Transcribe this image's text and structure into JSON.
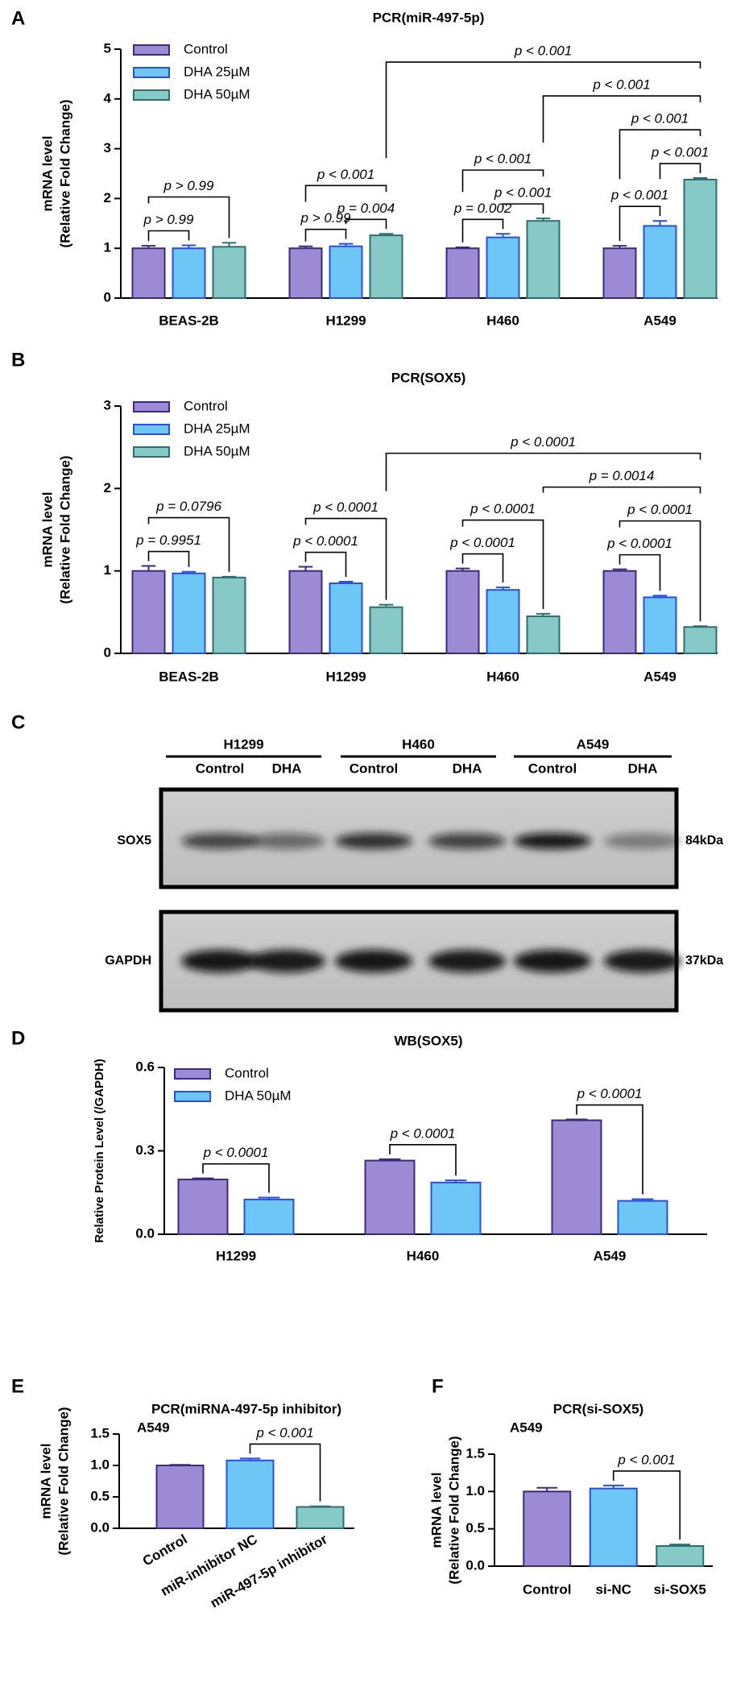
{
  "chart_data": [
    {
      "panel": "A",
      "type": "bar",
      "title": "PCR(miR-497-5p)",
      "ylabel": [
        "mRNA level",
        "(Relative Fold Change)"
      ],
      "categories": [
        "BEAS-2B",
        "H1299",
        "H460",
        "A549"
      ],
      "series": [
        {
          "name": "Control",
          "color": "#9c8ad4",
          "edgecolor": "#3b2b78",
          "values": [
            1.0,
            1.0,
            1.0,
            1.0
          ],
          "errors": [
            0.05,
            0.04,
            0.02,
            0.05
          ]
        },
        {
          "name": "DHA 25µM",
          "color": "#6ec6f7",
          "edgecolor": "#2a4fe0",
          "values": [
            1.0,
            1.04,
            1.22,
            1.45
          ],
          "errors": [
            0.06,
            0.05,
            0.07,
            0.1
          ]
        },
        {
          "name": "DHA 50µM",
          "color": "#86c9c7",
          "edgecolor": "#2e6e6e",
          "values": [
            1.03,
            1.26,
            1.55,
            2.38
          ],
          "errors": [
            0.08,
            0.03,
            0.05,
            0.03
          ]
        }
      ],
      "ylim": [
        0,
        5
      ],
      "yticks": [
        0,
        1,
        2,
        3,
        4,
        5
      ],
      "legend": "upper left",
      "annotations": [
        {
          "text": "p > 0.99",
          "bars": [
            [
              0,
              0
            ],
            [
              0,
              1
            ]
          ]
        },
        {
          "text": "p > 0.99",
          "bars": [
            [
              0,
              0
            ],
            [
              0,
              2
            ]
          ]
        },
        {
          "text": "p > 0.99",
          "bars": [
            [
              1,
              0
            ],
            [
              1,
              1
            ]
          ]
        },
        {
          "text": "p = 0.004",
          "bars": [
            [
              1,
              1
            ],
            [
              1,
              2
            ]
          ]
        },
        {
          "text": "p < 0.001",
          "bars": [
            [
              1,
              0
            ],
            [
              1,
              2
            ]
          ]
        },
        {
          "text": "p = 0.002",
          "bars": [
            [
              2,
              0
            ],
            [
              2,
              1
            ]
          ]
        },
        {
          "text": "p < 0.001",
          "bars": [
            [
              2,
              1
            ],
            [
              2,
              2
            ]
          ]
        },
        {
          "text": "p < 0.001",
          "bars": [
            [
              2,
              0
            ],
            [
              2,
              2
            ]
          ]
        },
        {
          "text": "p < 0.001",
          "bars": [
            [
              3,
              0
            ],
            [
              3,
              1
            ]
          ]
        },
        {
          "text": "p < 0.001",
          "bars": [
            [
              3,
              1
            ],
            [
              3,
              2
            ]
          ]
        },
        {
          "text": "p < 0.001",
          "bars": [
            [
              3,
              0
            ],
            [
              3,
              2
            ]
          ]
        },
        {
          "text": "p < 0.001",
          "bars": [
            [
              2,
              2
            ],
            [
              3,
              2
            ]
          ]
        },
        {
          "text": "p < 0.001",
          "bars": [
            [
              1,
              2
            ],
            [
              3,
              2
            ]
          ]
        }
      ]
    },
    {
      "panel": "B",
      "type": "bar",
      "title": "PCR(SOX5)",
      "ylabel": [
        "mRNA level",
        "(Relative Fold Change)"
      ],
      "categories": [
        "BEAS-2B",
        "H1299",
        "H460",
        "A549"
      ],
      "series": [
        {
          "name": "Control",
          "color": "#9c8ad4",
          "edgecolor": "#3b2b78",
          "values": [
            1.0,
            1.0,
            1.0,
            1.0
          ],
          "errors": [
            0.06,
            0.05,
            0.03,
            0.02
          ]
        },
        {
          "name": "DHA 25µM",
          "color": "#6ec6f7",
          "edgecolor": "#2a4fe0",
          "values": [
            0.97,
            0.85,
            0.77,
            0.68
          ],
          "errors": [
            0.02,
            0.02,
            0.03,
            0.02
          ]
        },
        {
          "name": "DHA 50µM",
          "color": "#86c9c7",
          "edgecolor": "#2e6e6e",
          "values": [
            0.92,
            0.56,
            0.45,
            0.32
          ],
          "errors": [
            0.01,
            0.03,
            0.03,
            0.01
          ]
        }
      ],
      "ylim": [
        0,
        3
      ],
      "yticks": [
        0,
        1,
        2,
        3
      ],
      "legend": "upper left",
      "annotations": [
        {
          "text": "p = 0.9951",
          "bars": [
            [
              0,
              0
            ],
            [
              0,
              1
            ]
          ]
        },
        {
          "text": "p = 0.0796",
          "bars": [
            [
              0,
              0
            ],
            [
              0,
              2
            ]
          ]
        },
        {
          "text": "p < 0.0001",
          "bars": [
            [
              1,
              0
            ],
            [
              1,
              1
            ]
          ]
        },
        {
          "text": "p < 0.0001",
          "bars": [
            [
              1,
              0
            ],
            [
              1,
              2
            ]
          ]
        },
        {
          "text": "p < 0.0001",
          "bars": [
            [
              2,
              0
            ],
            [
              2,
              1
            ]
          ]
        },
        {
          "text": "p < 0.0001",
          "bars": [
            [
              2,
              0
            ],
            [
              2,
              2
            ]
          ]
        },
        {
          "text": "p < 0.0001",
          "bars": [
            [
              3,
              0
            ],
            [
              3,
              1
            ]
          ]
        },
        {
          "text": "p < 0.0001",
          "bars": [
            [
              3,
              0
            ],
            [
              3,
              2
            ]
          ]
        },
        {
          "text": "p = 0.0014",
          "bars": [
            [
              2,
              2
            ],
            [
              3,
              2
            ]
          ]
        },
        {
          "text": "p < 0.0001",
          "bars": [
            [
              1,
              2
            ],
            [
              3,
              2
            ]
          ]
        }
      ]
    },
    {
      "panel": "D",
      "type": "bar",
      "title": "WB(SOX5)",
      "ylabel": [
        "Relative Protein Level (/GAPDH)"
      ],
      "categories": [
        "H1299",
        "H460",
        "A549"
      ],
      "series": [
        {
          "name": "Control",
          "color": "#9c8ad4",
          "edgecolor": "#3b2b78",
          "values": [
            0.197,
            0.265,
            0.41
          ],
          "errors": [
            0.004,
            0.005,
            0.003
          ]
        },
        {
          "name": "DHA 50µM",
          "color": "#6ec6f7",
          "edgecolor": "#2a4fe0",
          "values": [
            0.125,
            0.186,
            0.12
          ],
          "errors": [
            0.007,
            0.008,
            0.006
          ]
        }
      ],
      "ylim": [
        0,
        0.6
      ],
      "yticks": [
        {
          "value": 0,
          "label": "0.0"
        },
        0.3,
        0.6
      ],
      "legend": "upper left",
      "annotations": [
        {
          "text": "p < 0.0001",
          "bars": [
            [
              0,
              0
            ],
            [
              0,
              1
            ]
          ]
        },
        {
          "text": "p < 0.0001",
          "bars": [
            [
              1,
              0
            ],
            [
              1,
              1
            ]
          ]
        },
        {
          "text": "p < 0.0001",
          "bars": [
            [
              2,
              0
            ],
            [
              2,
              1
            ]
          ]
        }
      ]
    },
    {
      "panel": "E",
      "type": "bar",
      "title": "PCR(miRNA-497-5p inhibitor)",
      "subtitle": "A549",
      "ylabel": [
        "mRNA level",
        "(Relative Fold Change)"
      ],
      "categories": [
        "Control",
        "miR-inhibitor NC",
        "miR-497-5p inhibitor"
      ],
      "xtick_rotation": 30,
      "values": [
        1.0,
        1.08,
        0.34
      ],
      "errors": [
        0.01,
        0.03,
        0.01
      ],
      "colors": [
        "#9c8ad4",
        "#6ec6f7",
        "#86c9c7"
      ],
      "edgecolors": [
        "#3b2b78",
        "#2a4fe0",
        "#2e6e6e"
      ],
      "ylim": [
        0,
        1.5
      ],
      "yticks": [
        {
          "value": 0,
          "label": "0.0"
        },
        0.5,
        {
          "value": 1,
          "label": "1.0"
        },
        1.5
      ],
      "annotations": [
        {
          "text": "p < 0.001",
          "bars": [
            [
              1,
              0
            ],
            [
              2,
              0
            ]
          ]
        }
      ]
    },
    {
      "panel": "F",
      "type": "bar",
      "title": "PCR(si-SOX5)",
      "subtitle": "A549",
      "ylabel": [
        "mRNA level",
        "(Relative Fold Change)"
      ],
      "categories": [
        "Control",
        "si-NC",
        "si-SOX5"
      ],
      "values": [
        1.0,
        1.04,
        0.27
      ],
      "errors": [
        0.05,
        0.04,
        0.02
      ],
      "colors": [
        "#9c8ad4",
        "#6ec6f7",
        "#86c9c7"
      ],
      "edgecolors": [
        "#3b2b78",
        "#2a4fe0",
        "#2e6e6e"
      ],
      "ylim": [
        0,
        1.5
      ],
      "yticks": [
        {
          "value": 0,
          "label": "0.0"
        },
        0.5,
        {
          "value": 1,
          "label": "1.0"
        },
        1.5
      ],
      "annotations": [
        {
          "text": "p < 0.001",
          "bars": [
            [
              1,
              0
            ],
            [
              2,
              0
            ]
          ]
        }
      ]
    }
  ],
  "blot": {
    "panel": "C",
    "groups": [
      {
        "label": "H1299",
        "lanes": [
          "Control",
          "DHA"
        ]
      },
      {
        "label": "H460",
        "lanes": [
          "Control",
          "DHA"
        ]
      },
      {
        "label": "A549",
        "lanes": [
          "Control",
          "DHA"
        ]
      }
    ],
    "rows": [
      {
        "label": "SOX5",
        "size": "84kDa"
      },
      {
        "label": "GAPDH",
        "size": "37kDa"
      }
    ]
  }
}
